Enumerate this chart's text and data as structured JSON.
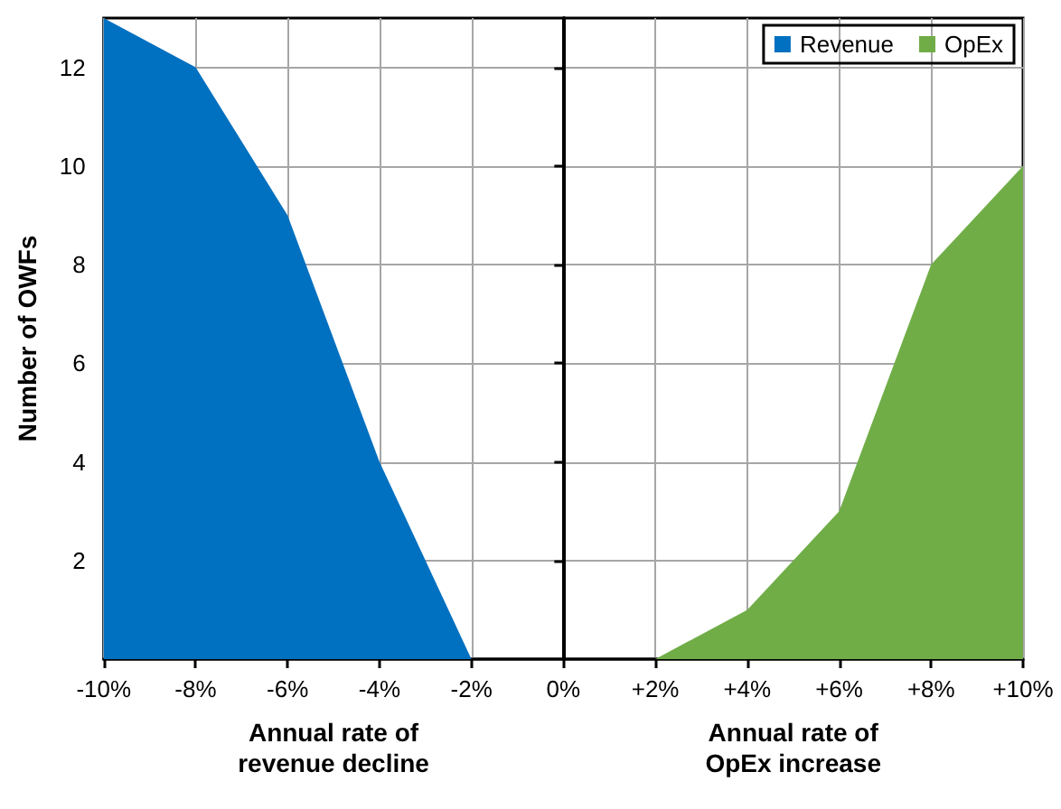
{
  "chart_data": {
    "type": "area",
    "ylabel": "Number of OWFs",
    "annotations": [
      "Annual rate of\nrevenue decline",
      "Annual rate of\nOpEx increase"
    ],
    "series": [
      {
        "name": "Revenue",
        "color": "#0070c0",
        "x": [
          -10,
          -8,
          -6,
          -4,
          -2
        ],
        "values": [
          13,
          12,
          9,
          4,
          0
        ]
      },
      {
        "name": "OpEx",
        "color": "#70ad47",
        "x": [
          2,
          4,
          6,
          8,
          10
        ],
        "values": [
          0,
          1,
          3,
          8,
          10
        ]
      }
    ],
    "xlim": [
      -10,
      10
    ],
    "xticks": [
      {
        "value": -10,
        "label": "-10%"
      },
      {
        "value": -8,
        "label": "-8%"
      },
      {
        "value": -6,
        "label": "-6%"
      },
      {
        "value": -4,
        "label": "-4%"
      },
      {
        "value": -2,
        "label": "-2%"
      },
      {
        "value": 0,
        "label": "0%"
      },
      {
        "value": 2,
        "label": "+2%"
      },
      {
        "value": 4,
        "label": "+4%"
      },
      {
        "value": 6,
        "label": "+6%"
      },
      {
        "value": 8,
        "label": "+8%"
      },
      {
        "value": 10,
        "label": "+10%"
      }
    ],
    "ylim": [
      0,
      13
    ],
    "yticks": [
      2,
      4,
      6,
      8,
      10,
      12
    ],
    "grid": true,
    "legend": "top right"
  }
}
